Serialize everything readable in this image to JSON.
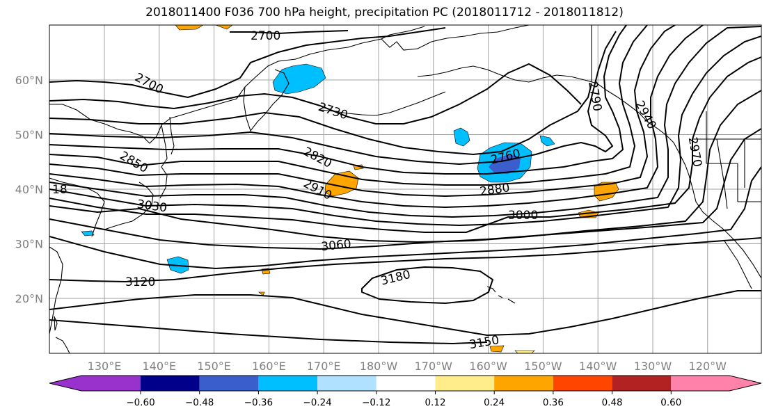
{
  "title": "2018011400 F036 700 hPa height, precipitation PC (2018011712 - 2018011812)",
  "map": {
    "lon_labels": [
      "130°E",
      "140°E",
      "150°E",
      "160°E",
      "170°E",
      "180°W",
      "170°W",
      "160°W",
      "150°W",
      "140°W",
      "130°W",
      "120°W"
    ],
    "lat_labels": [
      "60°N",
      "50°N",
      "40°N",
      "30°N",
      "20°N"
    ],
    "contour_labels": [
      "2700",
      "2700",
      "2730",
      "2760",
      "2790",
      "2820",
      "2850",
      "2880",
      "2910",
      "2940",
      "2970",
      "3000",
      "3030",
      "3060",
      "3120",
      "3150",
      "3180"
    ],
    "contour_label_fragment": "18",
    "grid": true,
    "fill_colors": {
      "blue": "#00bfff",
      "dark_blue": "#3a5fcd",
      "orange": "#ffa500",
      "yellow": "#ffec8b"
    }
  },
  "colorbar": {
    "ticks": [
      "−0.60",
      "−0.48",
      "−0.36",
      "−0.24",
      "−0.12",
      "0.12",
      "0.24",
      "0.36",
      "0.48",
      "0.60"
    ],
    "colors": [
      "#9932cc",
      "#00008b",
      "#3a5fcd",
      "#00bfff",
      "#b0e2ff",
      "#ffffff",
      "#ffec8b",
      "#ffa500",
      "#ff4500",
      "#b22222",
      "#ff82ab"
    ]
  }
}
